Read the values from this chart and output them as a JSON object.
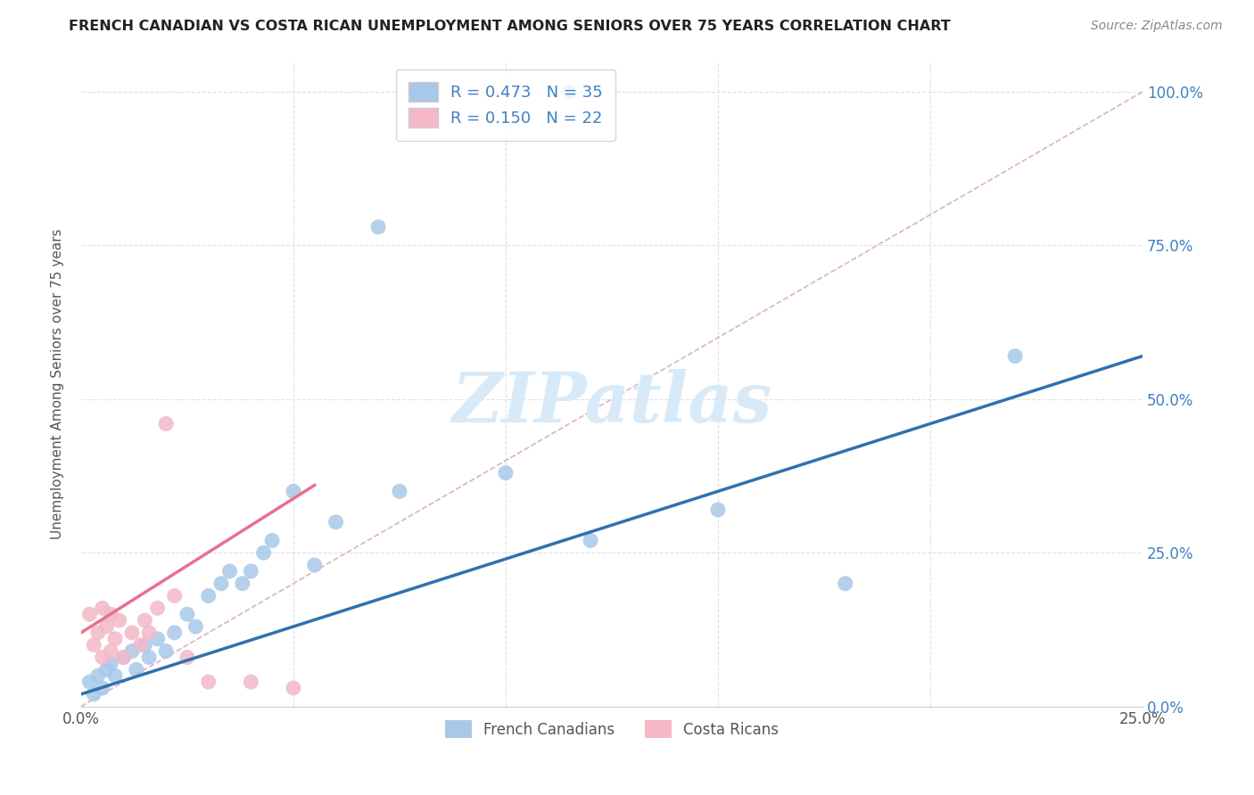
{
  "title": "FRENCH CANADIAN VS COSTA RICAN UNEMPLOYMENT AMONG SENIORS OVER 75 YEARS CORRELATION CHART",
  "source": "Source: ZipAtlas.com",
  "ylabel": "Unemployment Among Seniors over 75 years",
  "xlim": [
    0.0,
    0.25
  ],
  "ylim": [
    0.0,
    1.05
  ],
  "yticks": [
    0.0,
    0.25,
    0.5,
    0.75,
    1.0
  ],
  "ytick_labels": [
    "0.0%",
    "25.0%",
    "50.0%",
    "75.0%",
    "100.0%"
  ],
  "legend_label1": "French Canadians",
  "legend_label2": "Costa Ricans",
  "blue_color": "#a8c8e8",
  "pink_color": "#f4b8c8",
  "blue_line_color": "#3070b0",
  "pink_line_color": "#e87090",
  "dashed_line_color": "#d0a0b0",
  "grid_color": "#e0e0e0",
  "watermark": "ZIPatlas",
  "watermark_color": "#d8eaf8",
  "blue_scatter_x": [
    0.002,
    0.003,
    0.004,
    0.005,
    0.006,
    0.007,
    0.008,
    0.01,
    0.012,
    0.013,
    0.015,
    0.016,
    0.018,
    0.02,
    0.022,
    0.025,
    0.027,
    0.03,
    0.033,
    0.035,
    0.038,
    0.04,
    0.043,
    0.045,
    0.05,
    0.055,
    0.06,
    0.07,
    0.075,
    0.1,
    0.115,
    0.12,
    0.15,
    0.18,
    0.22
  ],
  "blue_scatter_y": [
    0.04,
    0.02,
    0.05,
    0.03,
    0.06,
    0.07,
    0.05,
    0.08,
    0.09,
    0.06,
    0.1,
    0.08,
    0.11,
    0.09,
    0.12,
    0.15,
    0.13,
    0.18,
    0.2,
    0.22,
    0.2,
    0.22,
    0.25,
    0.27,
    0.35,
    0.23,
    0.3,
    0.78,
    0.35,
    0.38,
    1.0,
    0.27,
    0.32,
    0.2,
    0.57
  ],
  "pink_scatter_x": [
    0.002,
    0.003,
    0.004,
    0.005,
    0.005,
    0.006,
    0.007,
    0.007,
    0.008,
    0.009,
    0.01,
    0.012,
    0.014,
    0.015,
    0.016,
    0.018,
    0.02,
    0.022,
    0.025,
    0.03,
    0.04,
    0.05
  ],
  "pink_scatter_y": [
    0.15,
    0.1,
    0.12,
    0.16,
    0.08,
    0.13,
    0.15,
    0.09,
    0.11,
    0.14,
    0.08,
    0.12,
    0.1,
    0.14,
    0.12,
    0.16,
    0.46,
    0.18,
    0.08,
    0.04,
    0.04,
    0.03
  ],
  "blue_regline_x": [
    0.0,
    0.25
  ],
  "blue_regline_y": [
    0.02,
    0.57
  ],
  "pink_regline_x": [
    0.0,
    0.055
  ],
  "pink_regline_y": [
    0.12,
    0.36
  ]
}
